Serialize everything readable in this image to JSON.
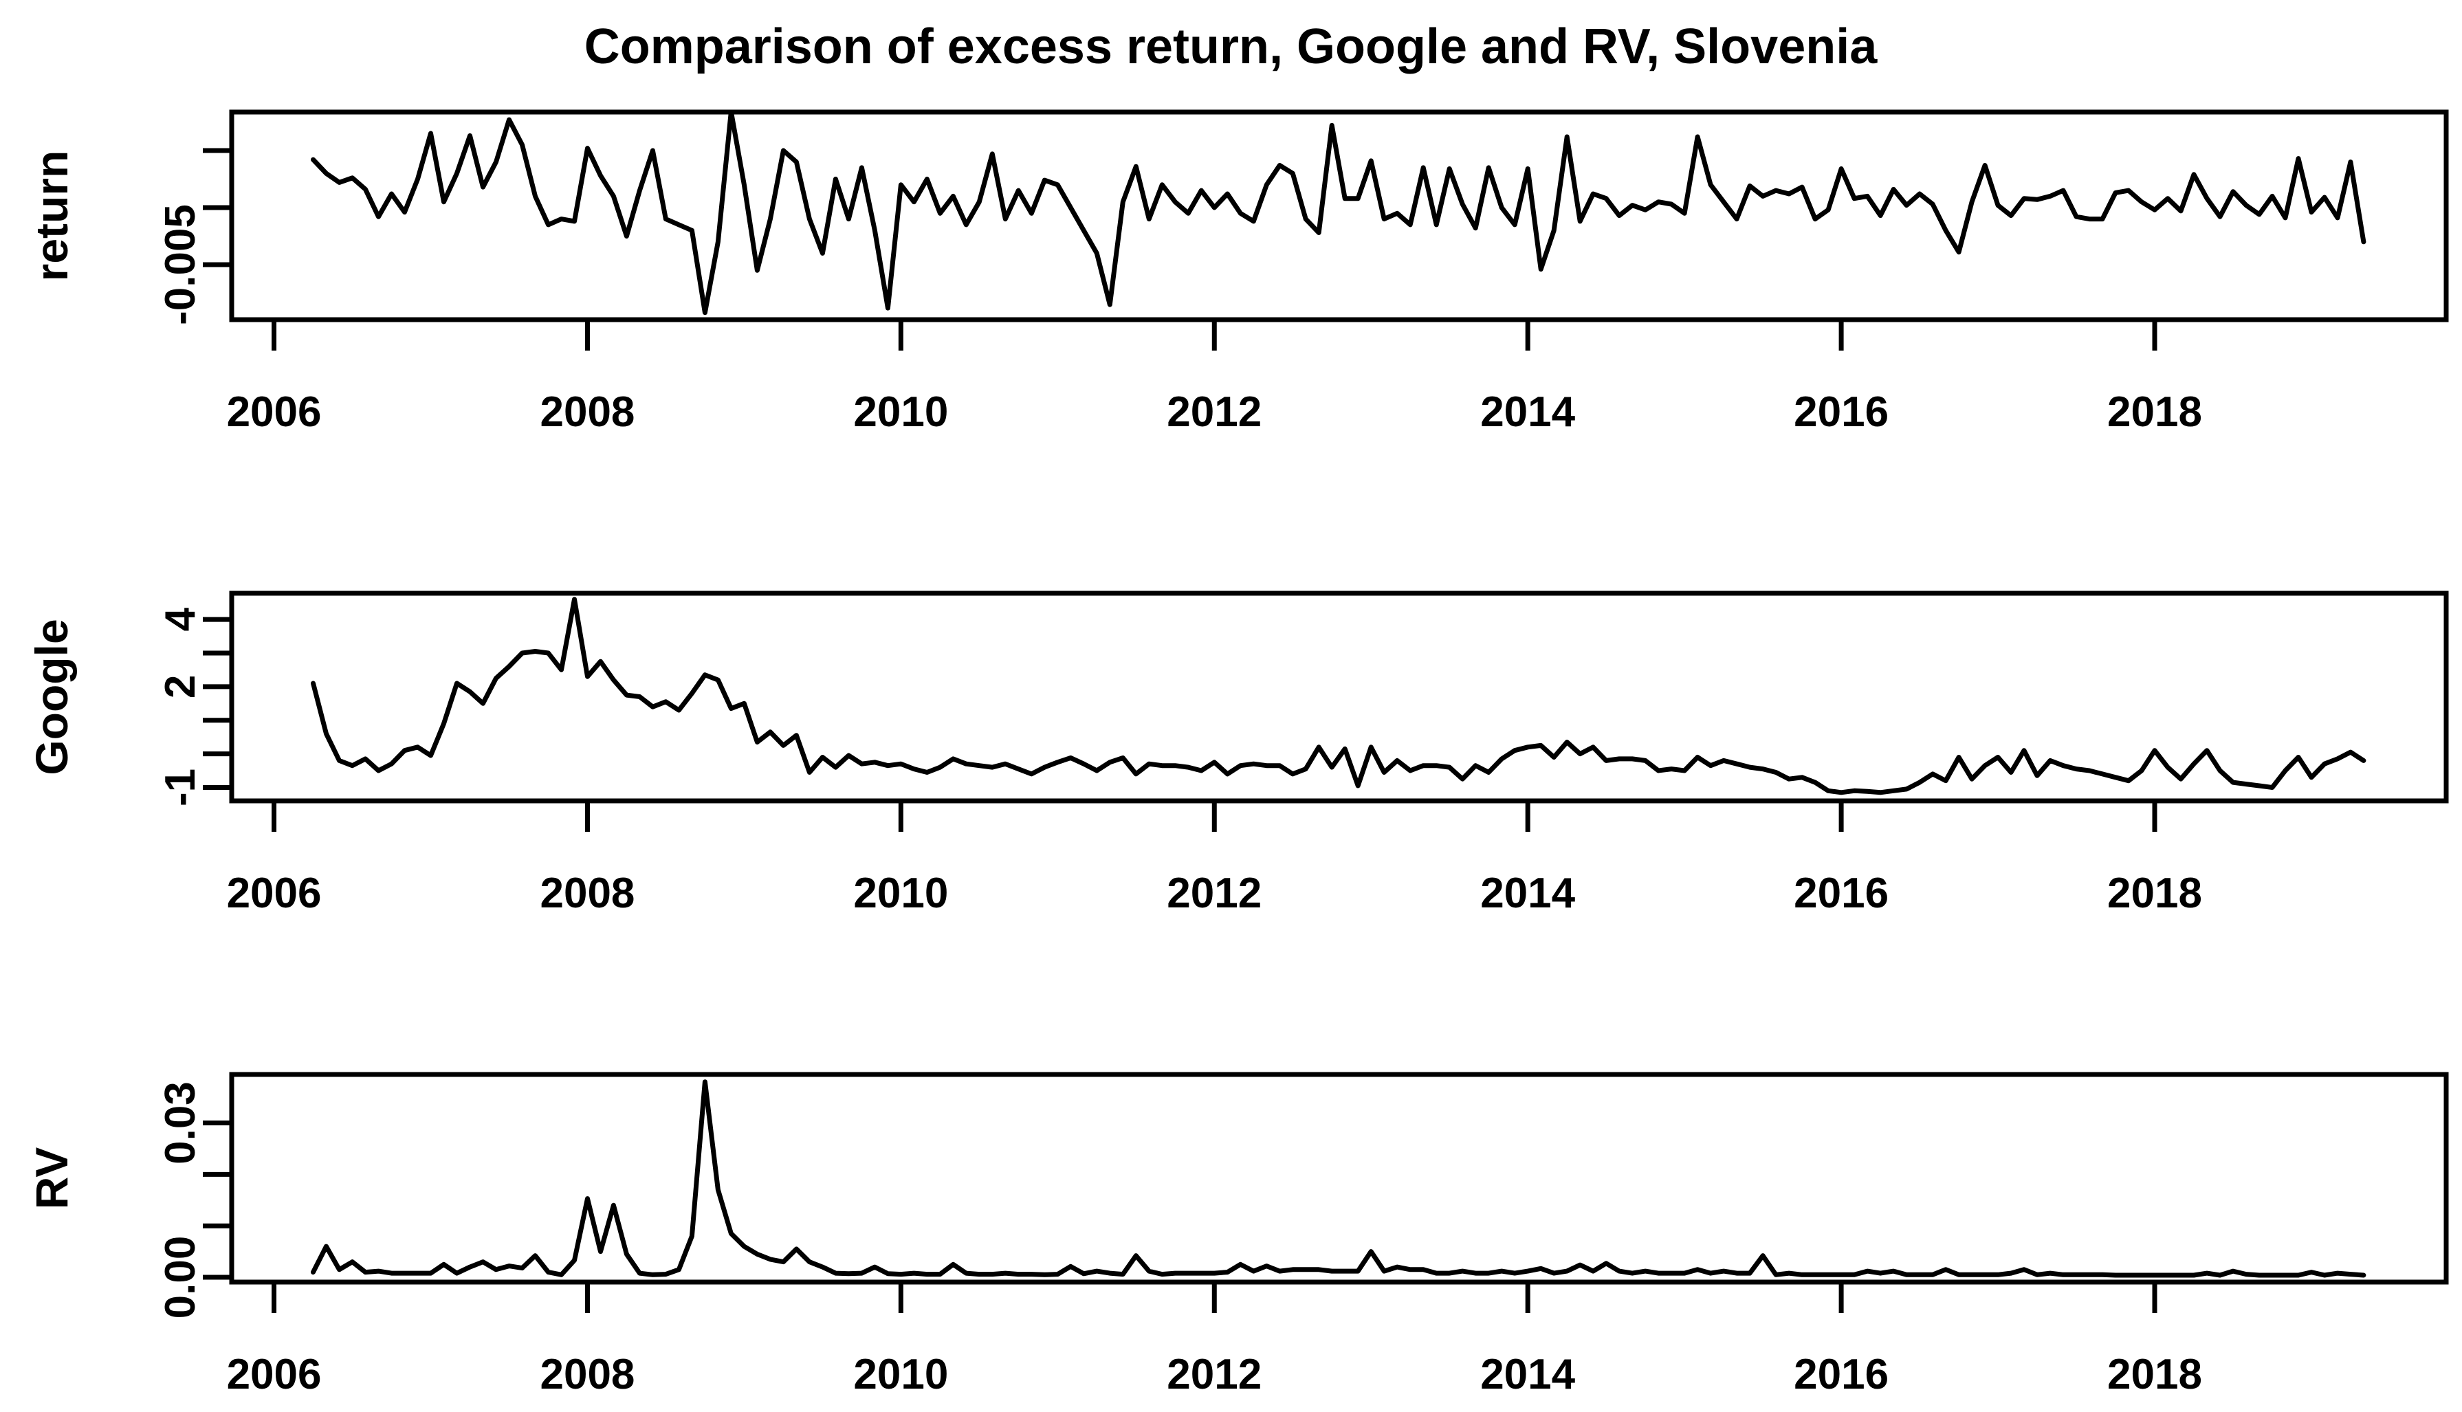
{
  "figure": {
    "background": "#ffffff",
    "line_color": "#000000",
    "text_color": "#000000"
  },
  "chart_data": {
    "type": "line",
    "title": "Comparison of excess return, Google and RV, Slovenia",
    "x_axis": {
      "range": [
        2005.73,
        2019.86
      ],
      "ticks": [
        2006,
        2008,
        2010,
        2012,
        2014,
        2016,
        2018
      ],
      "tick_labels": [
        "2006",
        "2008",
        "2010",
        "2012",
        "2014",
        "2016",
        "2018"
      ]
    },
    "x_start": 2006.25,
    "x_step_years": 0.0833333,
    "panels": [
      {
        "ylabel": "return",
        "ylim": [
          -0.00982,
          0.00837
        ],
        "ytick_values": [
          0.005,
          0.0,
          -0.005
        ],
        "ytick_labels": [
          "",
          "",
          "-0.005"
        ],
        "values": [
          0.0042,
          0.003,
          0.0022,
          0.0026,
          0.0016,
          -0.0008,
          0.0012,
          -0.0004,
          0.0025,
          0.0065,
          0.0005,
          0.003,
          0.0063,
          0.0018,
          0.004,
          0.0077,
          0.0055,
          0.001,
          -0.0015,
          -0.001,
          -0.0012,
          0.0052,
          0.0028,
          0.001,
          -0.0025,
          0.0015,
          0.005,
          -0.001,
          -0.0015,
          -0.002,
          -0.0092,
          -0.003,
          0.0084,
          0.002,
          -0.0055,
          -0.001,
          0.005,
          0.004,
          -0.001,
          -0.004,
          0.0025,
          -0.001,
          0.0035,
          -0.002,
          -0.0088,
          0.002,
          0.0005,
          0.0025,
          -0.0005,
          0.001,
          -0.0015,
          0.0005,
          0.0047,
          -0.001,
          0.0015,
          -0.0005,
          0.0024,
          0.002,
          0.0,
          -0.002,
          -0.004,
          -0.0085,
          0.0005,
          0.0036,
          -0.001,
          0.002,
          0.0005,
          -0.0005,
          0.0015,
          0.0,
          0.0012,
          -0.0005,
          -0.0012,
          0.002,
          0.0037,
          0.003,
          -0.001,
          -0.0022,
          0.0072,
          0.0008,
          0.0008,
          0.0041,
          -0.001,
          -0.0005,
          -0.0015,
          0.0035,
          -0.0015,
          0.0034,
          0.0003,
          -0.0018,
          0.0035,
          0.0,
          -0.0015,
          0.0034,
          -0.0054,
          -0.002,
          0.0062,
          -0.0012,
          0.0012,
          0.0008,
          -0.0007,
          0.0002,
          -0.0002,
          0.0005,
          0.0003,
          -0.0005,
          0.0062,
          0.002,
          0.0005,
          -0.001,
          0.0019,
          0.001,
          0.0015,
          0.0012,
          0.0018,
          -0.001,
          -0.0002,
          0.0034,
          0.0008,
          0.001,
          -0.0007,
          0.0016,
          0.0002,
          0.0012,
          0.0003,
          -0.002,
          -0.0039,
          0.0005,
          0.0037,
          0.0002,
          -0.0007,
          0.0008,
          0.0007,
          0.001,
          0.0015,
          -0.0008,
          -0.001,
          -0.001,
          0.0013,
          0.0015,
          0.0005,
          -0.0002,
          0.0008,
          -0.0003,
          0.0029,
          0.0008,
          -0.0008,
          0.0014,
          0.0002,
          -0.0006,
          0.001,
          -0.0009,
          0.0043,
          -0.0004,
          0.0009,
          -0.0009,
          0.004,
          -0.003
        ]
      },
      {
        "ylabel": "Google",
        "ylim": [
          -1.4,
          4.78
        ],
        "ytick_values": [
          4,
          3,
          2,
          1,
          0,
          -1
        ],
        "ytick_labels": [
          "4",
          "",
          "2",
          "",
          "",
          "-1"
        ],
        "values": [
          2.1,
          0.6,
          -0.2,
          -0.35,
          -0.15,
          -0.5,
          -0.3,
          0.1,
          0.2,
          -0.05,
          0.9,
          2.1,
          1.85,
          1.5,
          2.25,
          2.6,
          3.0,
          3.05,
          3.0,
          2.5,
          4.6,
          2.3,
          2.75,
          2.2,
          1.75,
          1.7,
          1.4,
          1.55,
          1.3,
          1.8,
          2.35,
          2.2,
          1.35,
          1.5,
          0.35,
          0.65,
          0.25,
          0.55,
          -0.55,
          -0.1,
          -0.4,
          -0.05,
          -0.3,
          -0.25,
          -0.35,
          -0.3,
          -0.45,
          -0.55,
          -0.4,
          -0.15,
          -0.3,
          -0.35,
          -0.4,
          -0.3,
          -0.45,
          -0.6,
          -0.4,
          -0.25,
          -0.12,
          -0.3,
          -0.5,
          -0.25,
          -0.12,
          -0.6,
          -0.3,
          -0.35,
          -0.35,
          -0.4,
          -0.5,
          -0.25,
          -0.6,
          -0.35,
          -0.3,
          -0.35,
          -0.35,
          -0.6,
          -0.45,
          0.2,
          -0.4,
          0.15,
          -0.95,
          0.2,
          -0.55,
          -0.2,
          -0.5,
          -0.35,
          -0.35,
          -0.4,
          -0.75,
          -0.35,
          -0.55,
          -0.15,
          0.1,
          0.2,
          0.25,
          -0.1,
          0.35,
          0.0,
          0.2,
          -0.2,
          -0.15,
          -0.15,
          -0.2,
          -0.5,
          -0.45,
          -0.5,
          -0.1,
          -0.35,
          -0.2,
          -0.3,
          -0.4,
          -0.45,
          -0.55,
          -0.75,
          -0.7,
          -0.85,
          -1.1,
          -1.15,
          -1.1,
          -1.12,
          -1.15,
          -1.1,
          -1.05,
          -0.85,
          -0.6,
          -0.8,
          -0.1,
          -0.75,
          -0.35,
          -0.1,
          -0.55,
          0.1,
          -0.65,
          -0.2,
          -0.35,
          -0.45,
          -0.5,
          -0.6,
          -0.7,
          -0.8,
          -0.5,
          0.1,
          -0.4,
          -0.75,
          -0.3,
          0.1,
          -0.5,
          -0.85,
          -0.9,
          -0.95,
          -1.0,
          -0.5,
          -0.1,
          -0.7,
          -0.3,
          -0.15,
          0.05,
          -0.2
        ]
      },
      {
        "ylabel": "RV",
        "ylim": [
          -0.00093,
          0.03943
        ],
        "ytick_values": [
          0.03,
          0.02,
          0.01,
          0.0
        ],
        "ytick_labels": [
          "0.03",
          "",
          "",
          "0.00"
        ],
        "values": [
          0.001,
          0.006,
          0.0015,
          0.003,
          0.001,
          0.0012,
          0.0008,
          0.0008,
          0.0008,
          0.0008,
          0.0025,
          0.0008,
          0.002,
          0.003,
          0.0015,
          0.0022,
          0.0018,
          0.0042,
          0.001,
          0.0005,
          0.0033,
          0.0153,
          0.005,
          0.014,
          0.0045,
          0.0008,
          0.0005,
          0.0006,
          0.0015,
          0.008,
          0.038,
          0.017,
          0.0085,
          0.006,
          0.0045,
          0.0035,
          0.003,
          0.0055,
          0.003,
          0.002,
          0.0008,
          0.0007,
          0.0008,
          0.002,
          0.0007,
          0.0006,
          0.0008,
          0.0006,
          0.0006,
          0.0025,
          0.0008,
          0.0006,
          0.0006,
          0.0008,
          0.0006,
          0.0006,
          0.0005,
          0.0006,
          0.0021,
          0.0007,
          0.0012,
          0.0008,
          0.0006,
          0.0042,
          0.0012,
          0.0006,
          0.0008,
          0.0008,
          0.0008,
          0.0008,
          0.001,
          0.0025,
          0.0012,
          0.0022,
          0.0012,
          0.0015,
          0.0015,
          0.0015,
          0.0012,
          0.0012,
          0.0012,
          0.005,
          0.0012,
          0.002,
          0.0015,
          0.0015,
          0.0008,
          0.0008,
          0.0012,
          0.0008,
          0.0008,
          0.0012,
          0.0008,
          0.0012,
          0.0017,
          0.0008,
          0.0012,
          0.0024,
          0.0012,
          0.0027,
          0.0012,
          0.0008,
          0.0012,
          0.0008,
          0.0008,
          0.0008,
          0.0015,
          0.0008,
          0.0012,
          0.0008,
          0.0008,
          0.0042,
          0.0005,
          0.0008,
          0.0005,
          0.0005,
          0.0005,
          0.0005,
          0.0005,
          0.0012,
          0.0008,
          0.0012,
          0.0005,
          0.0005,
          0.0005,
          0.0015,
          0.0005,
          0.0005,
          0.0005,
          0.0005,
          0.0008,
          0.0015,
          0.0005,
          0.0008,
          0.0005,
          0.0005,
          0.0005,
          0.0005,
          0.0004,
          0.0004,
          0.0004,
          0.0004,
          0.0004,
          0.0004,
          0.0004,
          0.0008,
          0.0004,
          0.0012,
          0.0006,
          0.0004,
          0.0004,
          0.0004,
          0.0004,
          0.001,
          0.0004,
          0.0008,
          0.0006,
          0.0004
        ]
      }
    ]
  }
}
